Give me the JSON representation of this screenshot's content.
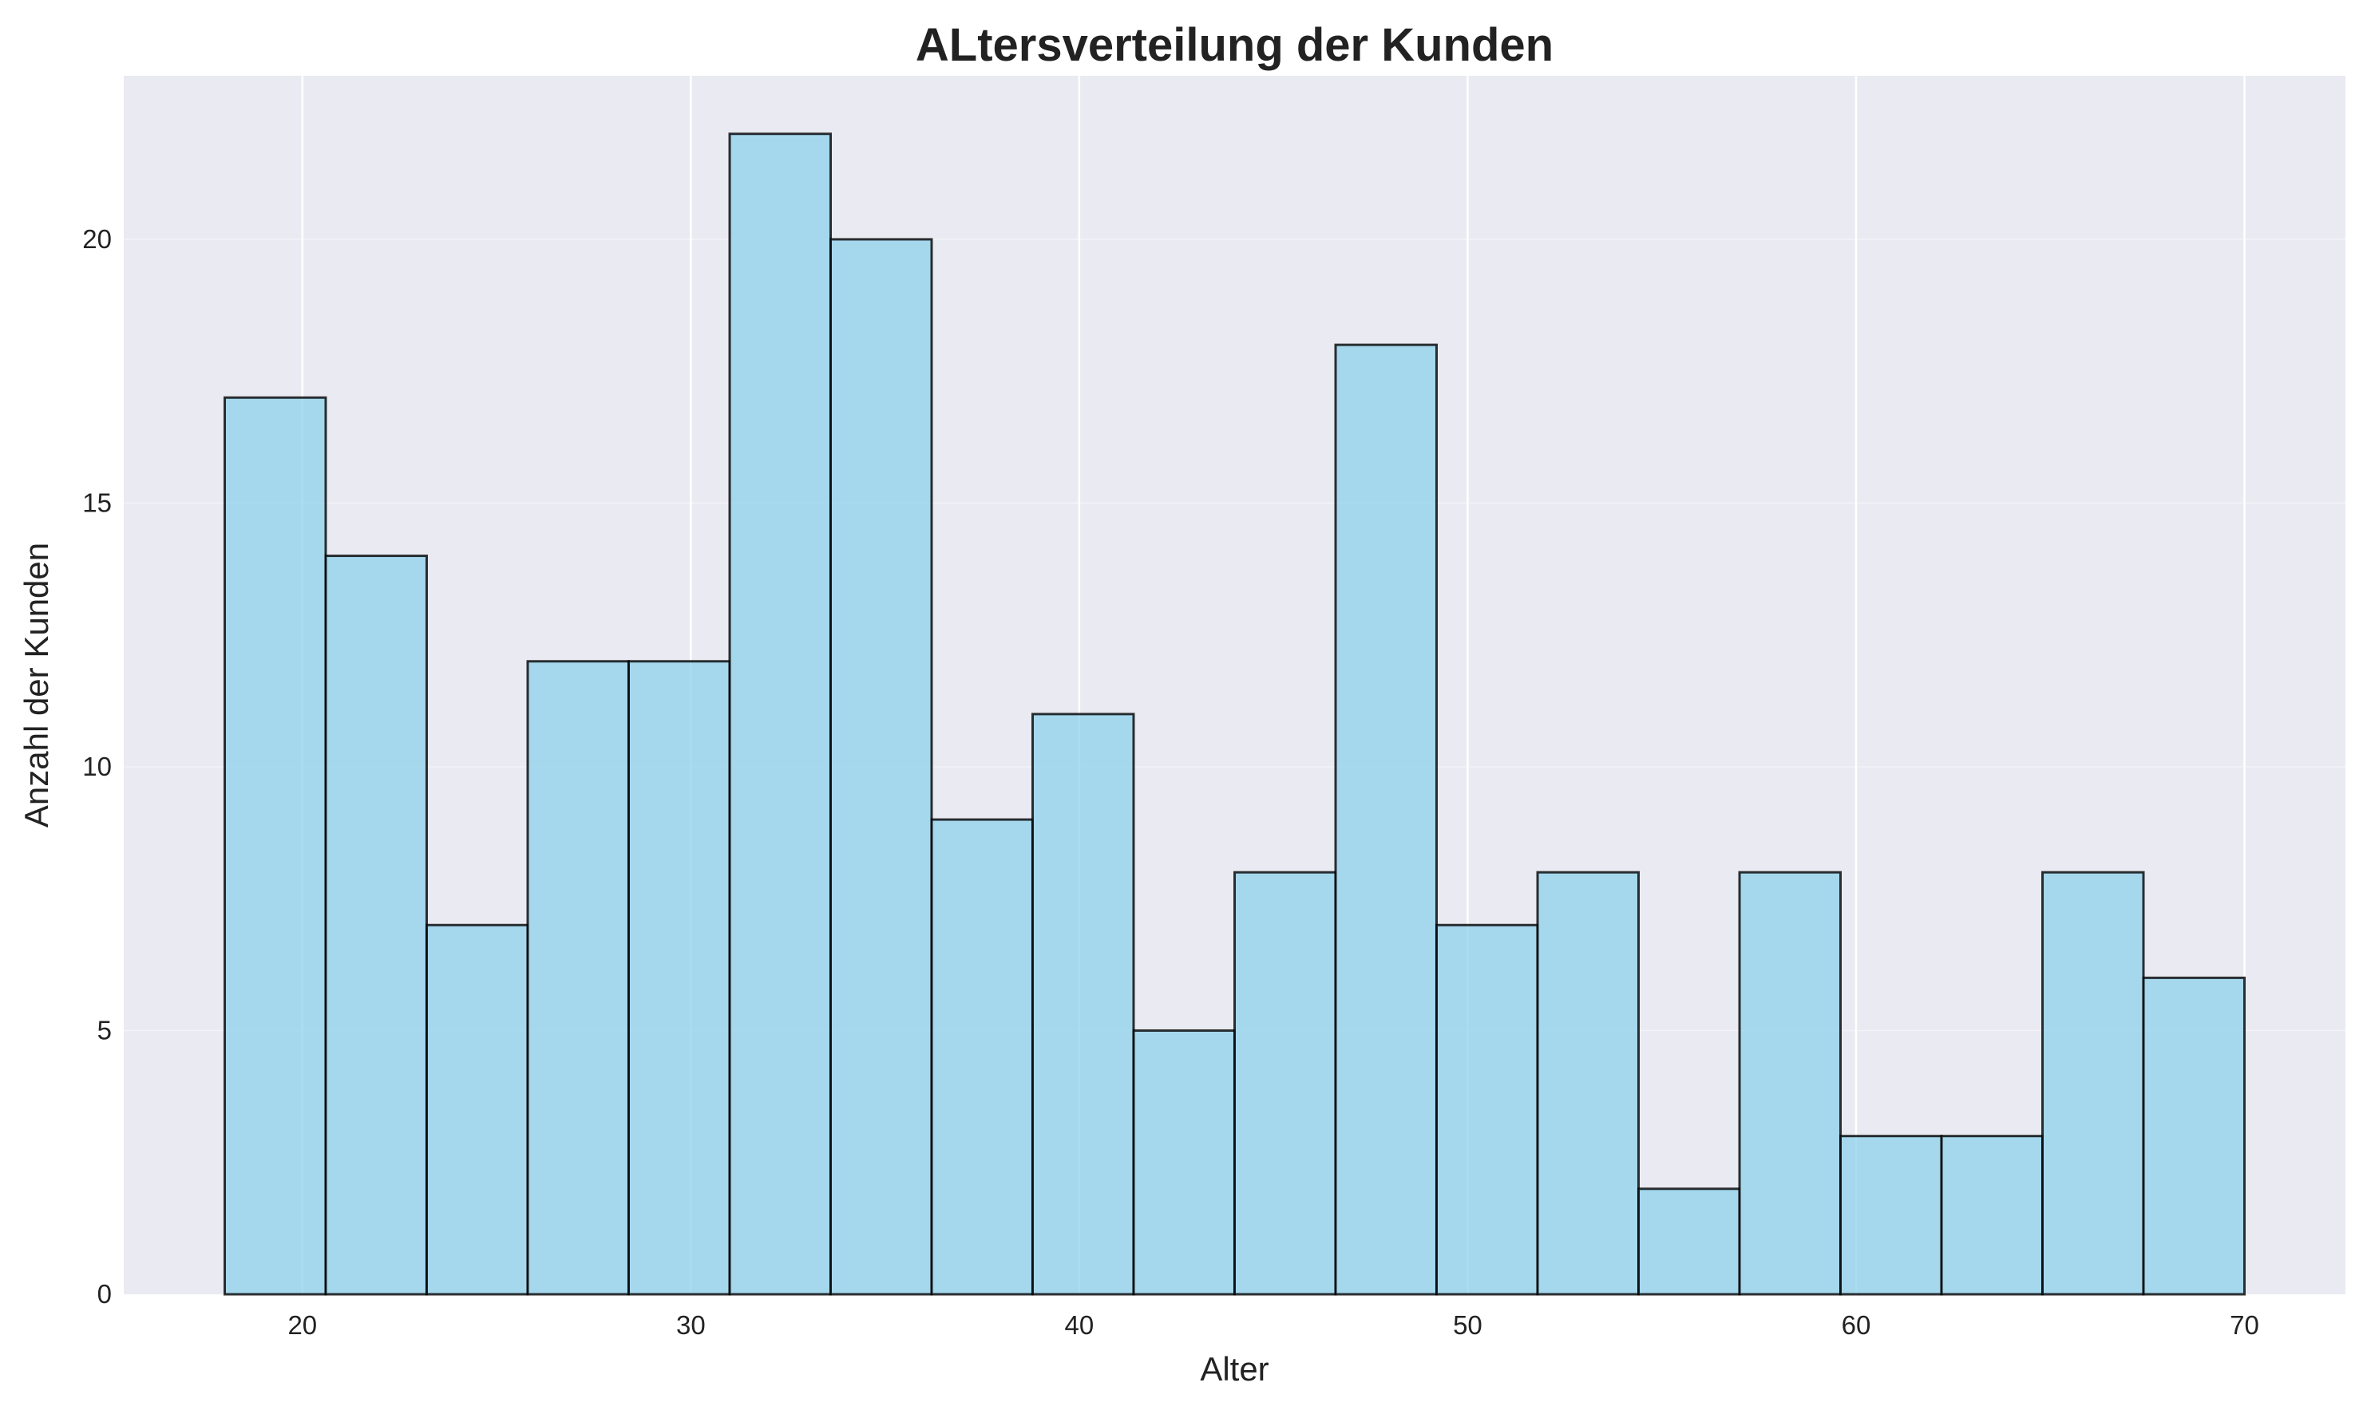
{
  "chart_data": {
    "type": "bar",
    "title": "ALtersverteilung der Kunden",
    "xlabel": "Alter",
    "ylabel": "Anzahl der Kunden",
    "bin_edges": [
      18,
      20.6,
      23.2,
      25.8,
      28.4,
      31.0,
      33.6,
      36.2,
      38.8,
      41.4,
      44.0,
      46.6,
      49.2,
      51.8,
      54.4,
      57.0,
      59.6,
      62.2,
      64.8,
      67.4,
      70
    ],
    "values": [
      17,
      14,
      7,
      12,
      12,
      22,
      20,
      9,
      11,
      5,
      8,
      18,
      7,
      8,
      2,
      8,
      3,
      3,
      8,
      6
    ],
    "xlim": [
      15.4,
      72.6
    ],
    "ylim": [
      0,
      23.1
    ],
    "xticks": [
      20,
      30,
      40,
      50,
      60,
      70
    ],
    "yticks": [
      0,
      5,
      10,
      15,
      20
    ],
    "grid": true,
    "bar_color": "#87CEEB",
    "edge_color": "#000000",
    "background_color": "#EAEAF2"
  }
}
